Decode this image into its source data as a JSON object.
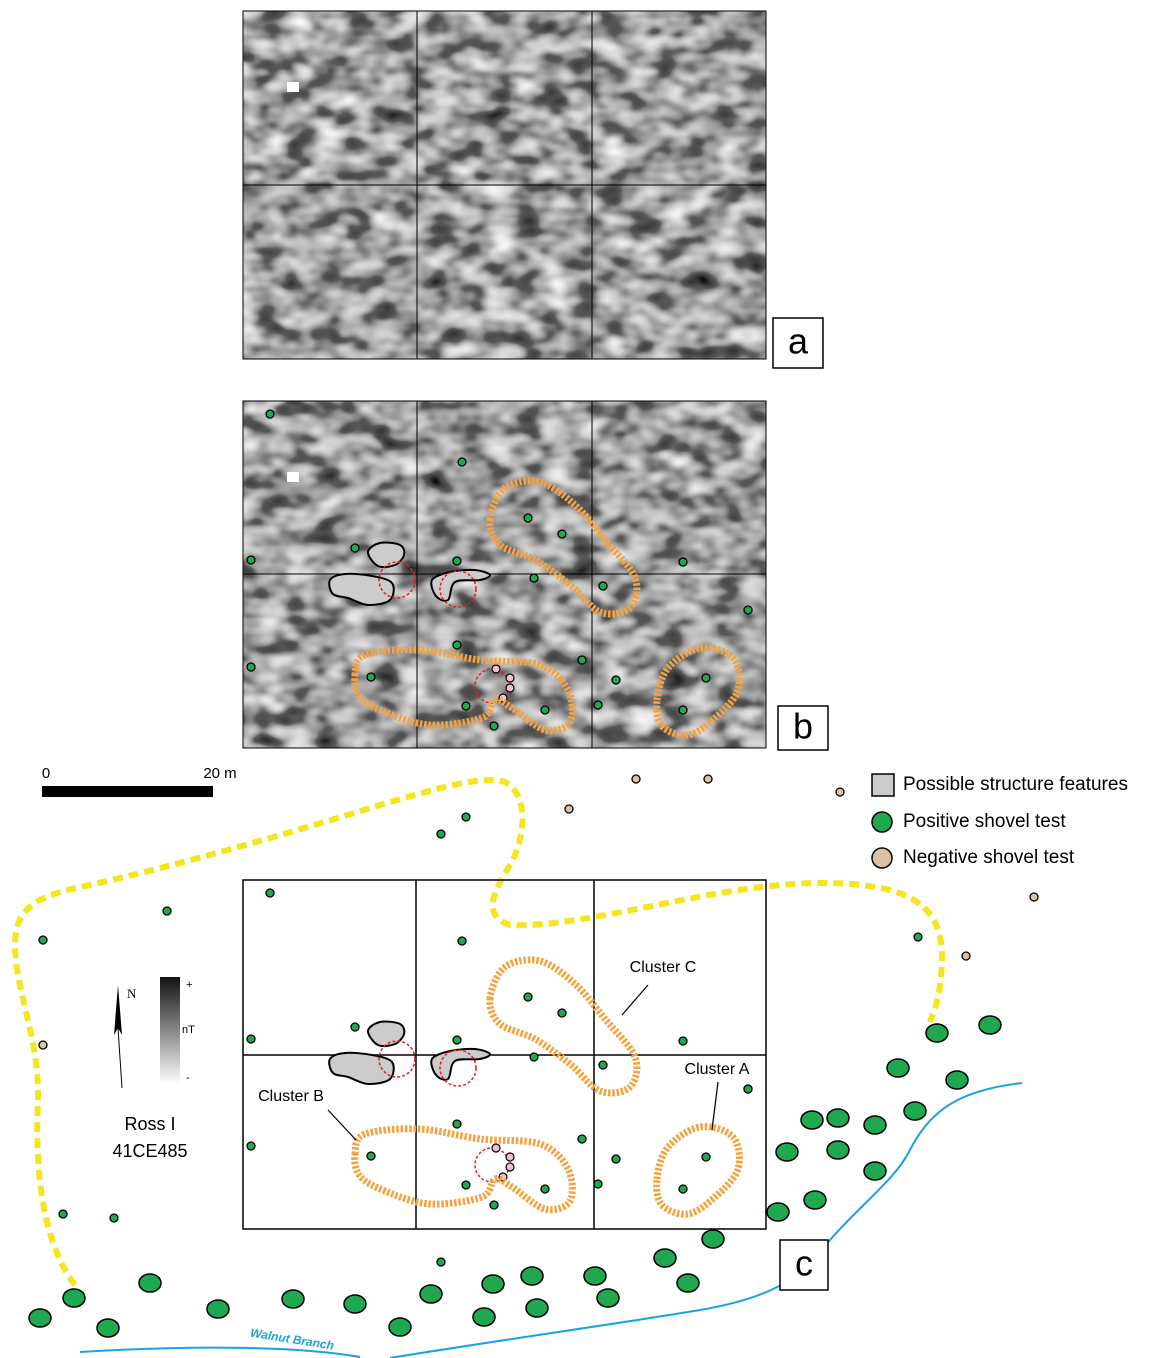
{
  "panel_labels": [
    "a",
    "b",
    "c"
  ],
  "scale_bar": {
    "start": "0",
    "end": "20 m"
  },
  "legend": [
    "Possible structure features",
    "Positive shovel test",
    "Negative shovel test"
  ],
  "clusters": {
    "a": "Cluster A",
    "b": "Cluster B",
    "c": "Cluster C"
  },
  "north": "N",
  "gradient": {
    "max": "+",
    "unit": "nT",
    "min": "-"
  },
  "site": {
    "name": "Ross I",
    "number": "41CE485"
  },
  "river": "Walnut Branch"
}
